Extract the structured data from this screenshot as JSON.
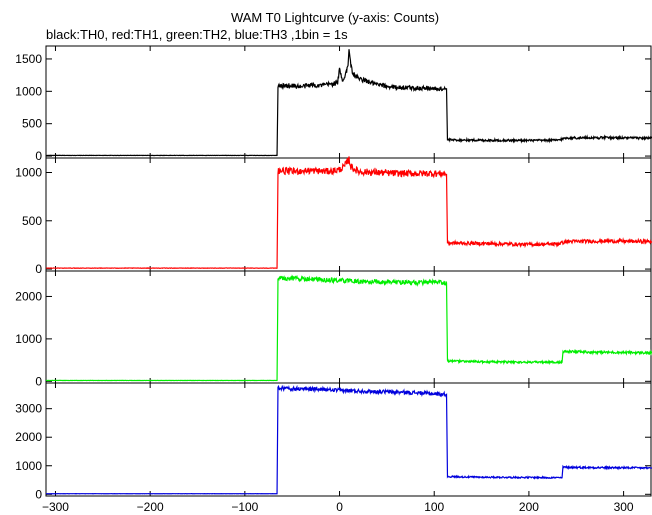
{
  "chart_data": {
    "type": "line",
    "title": "WAM T0 Lightcurve (y-axis: Counts)",
    "subtitle": "black:TH0, red:TH1, green:TH2, blue:TH3 ,1bin = 1s",
    "xlabel": "",
    "ylabel": "",
    "xlim": [
      -310,
      330
    ],
    "x_ticks": [
      -300,
      -200,
      -100,
      0,
      100,
      200,
      300
    ],
    "x_tick_labels": [
      "−300",
      "−200",
      "−100",
      "0",
      "100",
      "200",
      "300"
    ],
    "grid": false,
    "legend": "none",
    "panels": [
      {
        "name": "TH0",
        "color": "#000000",
        "ylim": [
          -30,
          1700
        ],
        "y_ticks": [
          0,
          500,
          1000,
          1500
        ],
        "y_tick_labels": [
          "0",
          "500",
          "1000",
          "1500"
        ],
        "x": [
          -310,
          -66,
          -65,
          -50,
          -40,
          -30,
          -20,
          -10,
          -2,
          0,
          3,
          5,
          7,
          9,
          10,
          11,
          13,
          15,
          20,
          30,
          40,
          50,
          60,
          70,
          80,
          90,
          100,
          110,
          113,
          114,
          150,
          200,
          230,
          240,
          280,
          330
        ],
        "values": [
          10,
          10,
          1080,
          1090,
          1070,
          1100,
          1090,
          1110,
          1130,
          1340,
          1180,
          1200,
          1300,
          1400,
          1650,
          1500,
          1330,
          1260,
          1200,
          1150,
          1100,
          1080,
          1060,
          1060,
          1050,
          1050,
          1040,
          1040,
          1040,
          250,
          245,
          240,
          245,
          280,
          285,
          275
        ]
      },
      {
        "name": "TH1",
        "color": "#ff0000",
        "ylim": [
          -20,
          1150
        ],
        "y_ticks": [
          0,
          500,
          1000
        ],
        "y_tick_labels": [
          "0",
          "500",
          "1000"
        ],
        "x": [
          -310,
          -66,
          -65,
          -50,
          -30,
          -10,
          0,
          5,
          10,
          12,
          15,
          20,
          40,
          60,
          80,
          100,
          113,
          114,
          150,
          200,
          230,
          240,
          280,
          330
        ],
        "values": [
          10,
          10,
          1020,
          1010,
          1020,
          1010,
          1030,
          1060,
          1140,
          1060,
          1040,
          1010,
          1000,
          990,
          990,
          990,
          985,
          270,
          265,
          255,
          260,
          285,
          290,
          285
        ]
      },
      {
        "name": "TH2",
        "color": "#00ee00",
        "ylim": [
          -40,
          2600
        ],
        "y_ticks": [
          0,
          1000,
          2000
        ],
        "y_tick_labels": [
          "0",
          "1000",
          "2000"
        ],
        "x": [
          -310,
          -66,
          -65,
          -50,
          -20,
          0,
          20,
          40,
          60,
          80,
          100,
          113,
          114,
          130,
          150,
          200,
          235,
          236,
          260,
          300,
          330
        ],
        "values": [
          20,
          20,
          2420,
          2430,
          2390,
          2380,
          2350,
          2340,
          2340,
          2330,
          2330,
          2320,
          480,
          470,
          460,
          450,
          450,
          700,
          690,
          680,
          670
        ]
      },
      {
        "name": "TH3",
        "color": "#0000dd",
        "ylim": [
          -60,
          3900
        ],
        "y_ticks": [
          0,
          1000,
          2000,
          3000
        ],
        "y_tick_labels": [
          "0",
          "1000",
          "2000",
          "3000"
        ],
        "x": [
          -310,
          -66,
          -65,
          -50,
          -20,
          0,
          20,
          40,
          60,
          80,
          100,
          113,
          114,
          130,
          150,
          200,
          235,
          236,
          260,
          300,
          330
        ],
        "values": [
          20,
          20,
          3720,
          3700,
          3680,
          3640,
          3620,
          3600,
          3580,
          3560,
          3520,
          3500,
          620,
          610,
          600,
          590,
          580,
          950,
          940,
          930,
          920
        ]
      }
    ]
  }
}
